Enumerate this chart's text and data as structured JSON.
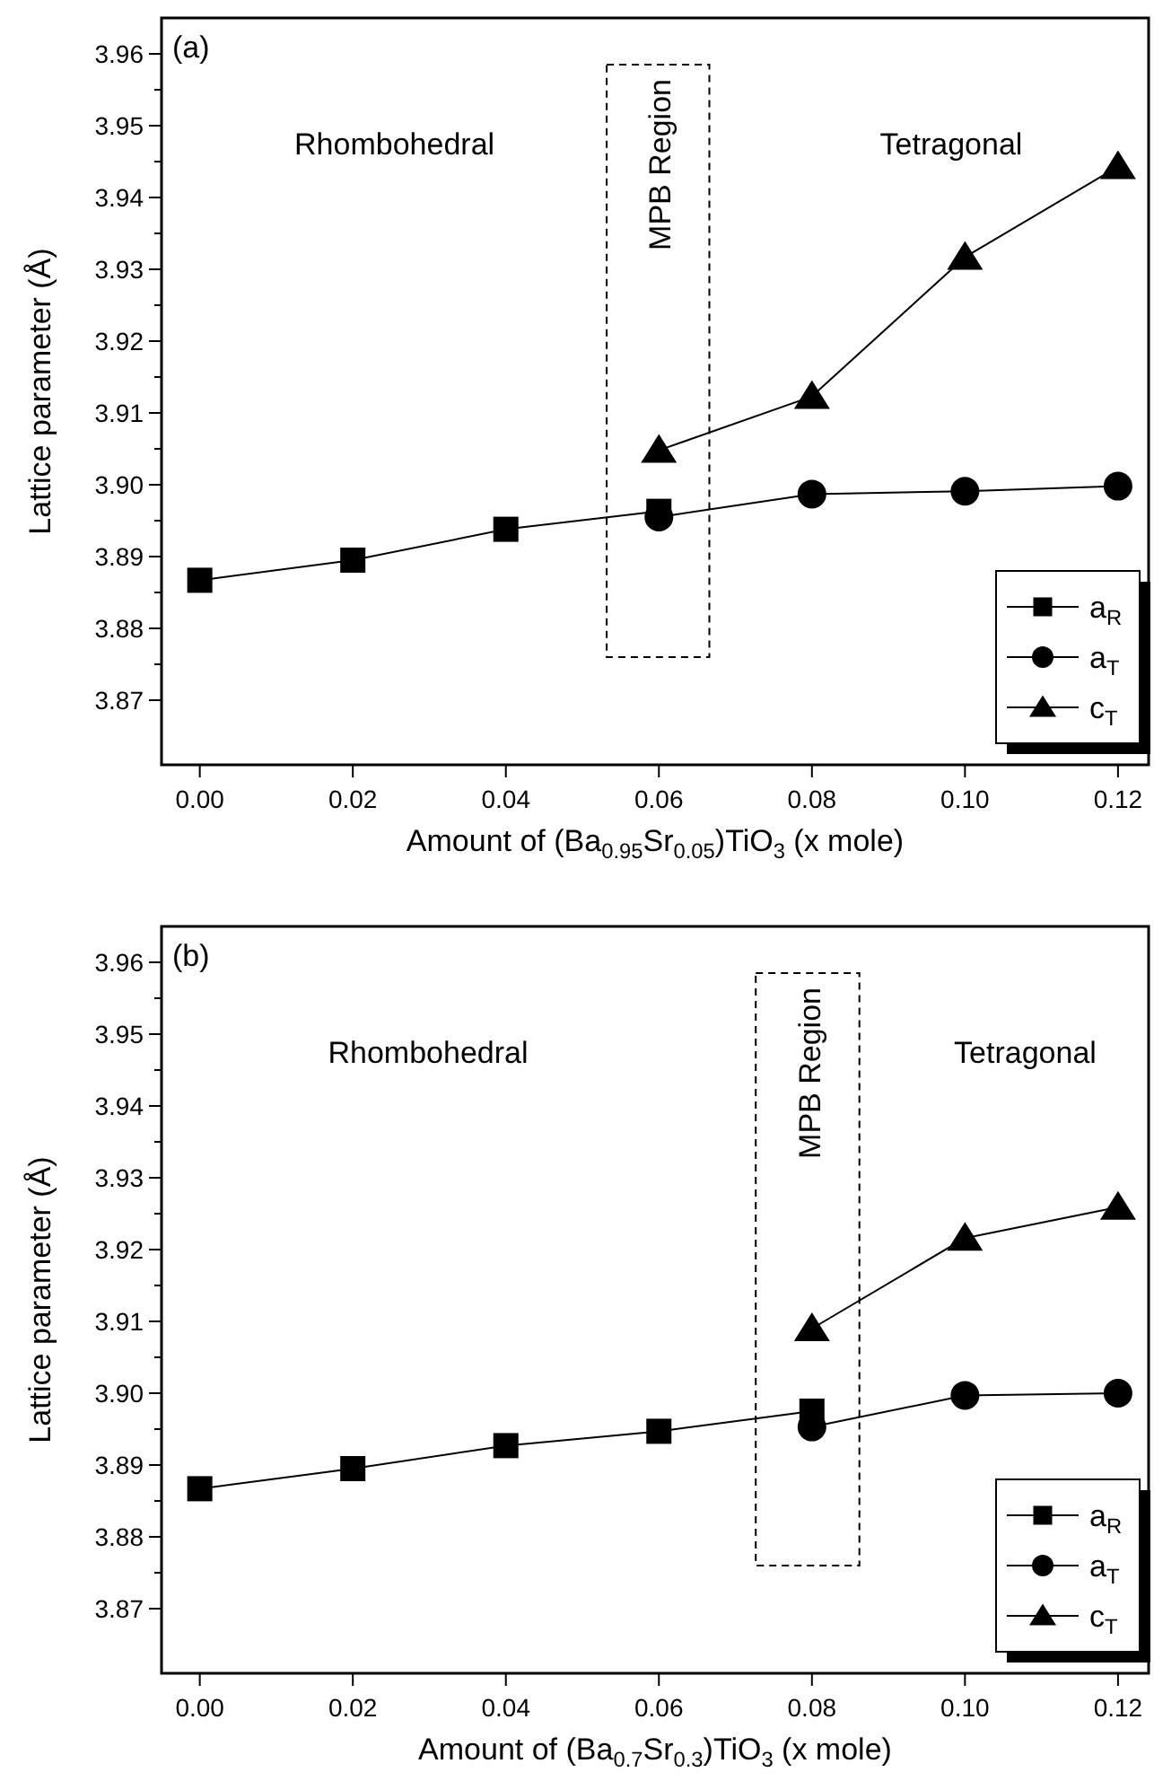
{
  "chart_data": [
    {
      "type": "line",
      "xlabel": "Amount of (Ba$_{0.95}$Sr$_{0.05}$)TiO$_{3}$ (x mole)",
      "ylabel": "Lattice parameter (Å)",
      "xlim": [
        -0.005,
        0.124
      ],
      "xticks": [
        {
          "value": 0,
          "label": "0.00"
        },
        {
          "value": 0.02,
          "label": "0.02"
        },
        {
          "value": 0.04,
          "label": "0.04"
        },
        {
          "value": 0.06,
          "label": "0.06"
        },
        {
          "value": 0.08,
          "label": "0.08"
        },
        {
          "value": 0.1,
          "label": "0.10"
        },
        {
          "value": 0.12,
          "label": "0.12"
        }
      ],
      "ylim": [
        3.861,
        3.965
      ],
      "yticks": [
        3.87,
        {
          "value": 3.875,
          "label": null
        },
        3.88,
        {
          "value": 3.885,
          "label": null
        },
        3.89,
        {
          "value": 3.895,
          "label": null
        },
        {
          "value": 3.9,
          "label": "3.90"
        },
        {
          "value": 3.905,
          "label": null
        },
        3.91,
        {
          "value": 3.915,
          "label": null
        },
        3.92,
        {
          "value": 3.925,
          "label": null
        },
        3.93,
        {
          "value": 3.935,
          "label": null
        },
        3.94,
        {
          "value": 3.945,
          "label": null
        },
        3.95,
        {
          "value": 3.955,
          "label": null
        },
        3.96
      ],
      "legend": "bottom right",
      "line_style": "solid",
      "series": [
        {
          "name": "a$_{R}$",
          "color": "#000000",
          "marker": "square",
          "x": [
            0,
            0.02,
            0.04,
            0.06
          ],
          "values": [
            3.8867,
            3.8895,
            3.8938,
            3.8963
          ]
        },
        {
          "name": "a$_{T}$",
          "color": "#000000",
          "marker": "circle",
          "x": [
            0.06,
            0.08,
            0.1,
            0.12
          ],
          "values": [
            3.8955,
            3.8987,
            3.8991,
            3.8998
          ]
        },
        {
          "name": "c$_{T}$",
          "color": "#000000",
          "marker": "triangle",
          "x": [
            0.06,
            0.08,
            0.1,
            0.12
          ],
          "values": [
            3.9048,
            3.9123,
            3.9317,
            3.9443
          ]
        }
      ],
      "annotations": [
        "(a)",
        "Rhombohedral",
        "MPB Region",
        "Tetragonal"
      ]
    },
    {
      "type": "line",
      "xlabel": "Amount of (Ba$_{0.7}$Sr$_{0.3}$)TiO$_{3}$ (x mole)",
      "ylabel": "Lattice parameter (Å)",
      "xlim": [
        -0.005,
        0.124
      ],
      "xticks": [
        {
          "value": 0,
          "label": "0.00"
        },
        {
          "value": 0.02,
          "label": "0.02"
        },
        {
          "value": 0.04,
          "label": "0.04"
        },
        {
          "value": 0.06,
          "label": "0.06"
        },
        {
          "value": 0.08,
          "label": "0.08"
        },
        {
          "value": 0.1,
          "label": "0.10"
        },
        {
          "value": 0.12,
          "label": "0.12"
        }
      ],
      "ylim": [
        3.861,
        3.965
      ],
      "yticks": [
        3.87,
        {
          "value": 3.875,
          "label": null
        },
        3.88,
        {
          "value": 3.885,
          "label": null
        },
        3.89,
        {
          "value": 3.895,
          "label": null
        },
        {
          "value": 3.9,
          "label": "3.90"
        },
        {
          "value": 3.905,
          "label": null
        },
        3.91,
        {
          "value": 3.915,
          "label": null
        },
        3.92,
        {
          "value": 3.925,
          "label": null
        },
        3.93,
        {
          "value": 3.935,
          "label": null
        },
        3.94,
        {
          "value": 3.945,
          "label": null
        },
        3.95,
        {
          "value": 3.955,
          "label": null
        },
        3.96
      ],
      "legend": "bottom right",
      "line_style": "solid",
      "series": [
        {
          "name": "a$_{R}$",
          "color": "#000000",
          "marker": "square",
          "x": [
            0,
            0.02,
            0.04,
            0.06,
            0.08
          ],
          "values": [
            3.8867,
            3.8895,
            3.8927,
            3.8947,
            3.8975
          ]
        },
        {
          "name": "a$_{T}$",
          "color": "#000000",
          "marker": "circle",
          "x": [
            0.08,
            0.1,
            0.12
          ],
          "values": [
            3.8953,
            3.8997,
            3.9
          ]
        },
        {
          "name": "c$_{T}$",
          "color": "#000000",
          "marker": "triangle",
          "x": [
            0.08,
            0.1,
            0.12
          ],
          "values": [
            3.909,
            3.9216,
            3.9259
          ]
        }
      ],
      "annotations": [
        "(b)",
        "Rhombohedral",
        "MPB Region",
        "Tetragonal"
      ]
    }
  ]
}
